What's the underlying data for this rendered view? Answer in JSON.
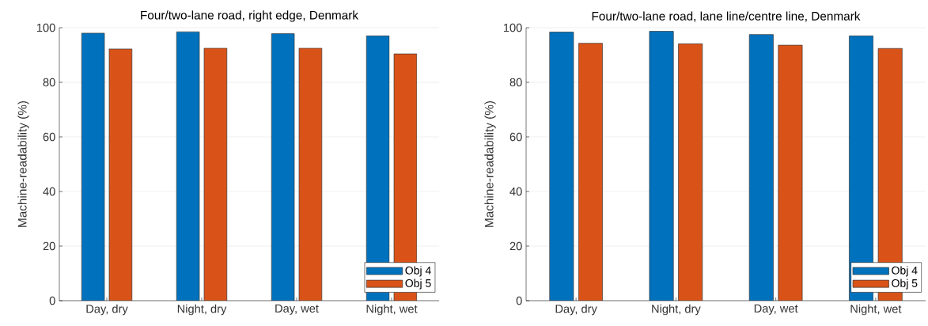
{
  "chart_data": [
    {
      "type": "bar",
      "title": "Four/two-lane road, right edge, Denmark",
      "ylabel": "Machine-readability (%)",
      "categories": [
        "Day, dry",
        "Night, dry",
        "Day, wet",
        "Night, wet"
      ],
      "series": [
        {
          "name": "Obj 4",
          "color": "#0072bd",
          "values": [
            98.0,
            98.5,
            97.8,
            97.0
          ]
        },
        {
          "name": "Obj 5",
          "color": "#d95319",
          "values": [
            92.2,
            92.5,
            92.5,
            90.4
          ]
        }
      ],
      "ylim": [
        0,
        100
      ],
      "yticks": [
        0,
        20,
        40,
        60,
        80,
        100
      ],
      "grid": "y",
      "legend": "bottom right"
    },
    {
      "type": "bar",
      "title": "Four/two-lane road, lane line/centre line, Denmark",
      "ylabel": "Machine-readability (%)",
      "categories": [
        "Day, dry",
        "Night, dry",
        "Day, wet",
        "Night, wet"
      ],
      "series": [
        {
          "name": "Obj 4",
          "color": "#0072bd",
          "values": [
            98.4,
            98.7,
            97.5,
            97.0
          ]
        },
        {
          "name": "Obj 5",
          "color": "#d95319",
          "values": [
            94.3,
            94.1,
            93.6,
            92.4
          ]
        }
      ],
      "ylim": [
        0,
        100
      ],
      "yticks": [
        0,
        20,
        40,
        60,
        80,
        100
      ],
      "grid": "y",
      "legend": "bottom right"
    }
  ]
}
